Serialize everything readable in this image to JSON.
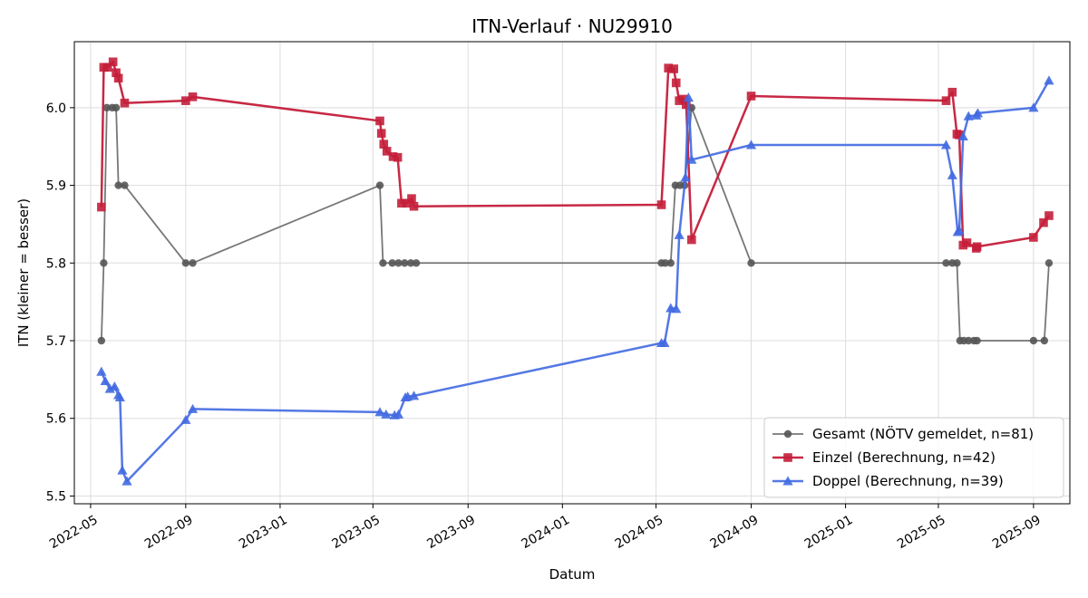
{
  "chart_data": {
    "type": "line",
    "title": "ITN-Verlauf · NU29910",
    "xlabel": "Datum",
    "ylabel": "ITN  (kleiner = besser)",
    "x_type": "date",
    "xlim": [
      "2022-04-10",
      "2025-10-18"
    ],
    "ylim": [
      5.49,
      6.085
    ],
    "x_ticks": [
      "2022-05",
      "2022-09",
      "2023-01",
      "2023-05",
      "2023-09",
      "2024-01",
      "2024-05",
      "2024-09",
      "2025-01",
      "2025-05",
      "2025-09"
    ],
    "y_ticks": [
      "5.5",
      "5.6",
      "5.7",
      "5.8",
      "5.9",
      "6.0"
    ],
    "grid": true,
    "legend_position": "bottom-right",
    "series": [
      {
        "name": "Gesamt (NÖTV gemeldet, n=81)",
        "color": "#555555",
        "marker": "circle",
        "points": [
          [
            "2022-05-15",
            5.7
          ],
          [
            "2022-05-18",
            5.8
          ],
          [
            "2022-05-22",
            6.0
          ],
          [
            "2022-05-29",
            6.0
          ],
          [
            "2022-06-03",
            6.0
          ],
          [
            "2022-06-06",
            5.9
          ],
          [
            "2022-06-14",
            5.9
          ],
          [
            "2022-09-01",
            5.8
          ],
          [
            "2022-09-10",
            5.8
          ],
          [
            "2023-05-10",
            5.9
          ],
          [
            "2023-05-14",
            5.8
          ],
          [
            "2023-05-26",
            5.8
          ],
          [
            "2023-06-03",
            5.8
          ],
          [
            "2023-06-11",
            5.8
          ],
          [
            "2023-06-19",
            5.8
          ],
          [
            "2023-06-26",
            5.8
          ],
          [
            "2024-05-08",
            5.8
          ],
          [
            "2024-05-13",
            5.8
          ],
          [
            "2024-05-20",
            5.8
          ],
          [
            "2024-05-26",
            5.9
          ],
          [
            "2024-06-01",
            5.9
          ],
          [
            "2024-06-07",
            5.9
          ],
          [
            "2024-06-16",
            6.0
          ],
          [
            "2024-09-01",
            5.8
          ],
          [
            "2025-05-11",
            5.8
          ],
          [
            "2025-05-19",
            5.8
          ],
          [
            "2025-05-25",
            5.8
          ],
          [
            "2025-05-29",
            5.7
          ],
          [
            "2025-06-03",
            5.7
          ],
          [
            "2025-06-09",
            5.7
          ],
          [
            "2025-06-16",
            5.7
          ],
          [
            "2025-06-20",
            5.7
          ],
          [
            "2025-09-01",
            5.7
          ],
          [
            "2025-09-15",
            5.7
          ],
          [
            "2025-09-21",
            5.8
          ]
        ]
      },
      {
        "name": "Einzel (Berechnung, n=42)",
        "color": "#c41e3a",
        "marker": "square",
        "points": [
          [
            "2022-05-15",
            5.872
          ],
          [
            "2022-05-18",
            6.052
          ],
          [
            "2022-05-23",
            6.052
          ],
          [
            "2022-05-30",
            6.059
          ],
          [
            "2022-06-03",
            6.045
          ],
          [
            "2022-06-06",
            6.038
          ],
          [
            "2022-06-14",
            6.006
          ],
          [
            "2022-09-01",
            6.009
          ],
          [
            "2022-09-10",
            6.014
          ],
          [
            "2023-05-10",
            5.983
          ],
          [
            "2023-05-12",
            5.967
          ],
          [
            "2023-05-15",
            5.953
          ],
          [
            "2023-05-19",
            5.944
          ],
          [
            "2023-05-27",
            5.937
          ],
          [
            "2023-06-02",
            5.936
          ],
          [
            "2023-06-07",
            5.877
          ],
          [
            "2023-06-14",
            5.877
          ],
          [
            "2023-06-20",
            5.883
          ],
          [
            "2023-06-23",
            5.873
          ],
          [
            "2024-05-08",
            5.875
          ],
          [
            "2024-05-17",
            6.051
          ],
          [
            "2024-05-24",
            6.05
          ],
          [
            "2024-05-27",
            6.032
          ],
          [
            "2024-05-31",
            6.009
          ],
          [
            "2024-06-06",
            6.011
          ],
          [
            "2024-06-09",
            6.004
          ],
          [
            "2024-06-16",
            5.83
          ],
          [
            "2024-09-01",
            6.015
          ],
          [
            "2025-05-11",
            6.009
          ],
          [
            "2025-05-19",
            6.02
          ],
          [
            "2025-05-25",
            5.966
          ],
          [
            "2025-05-28",
            5.965
          ],
          [
            "2025-06-02",
            5.823
          ],
          [
            "2025-06-07",
            5.826
          ],
          [
            "2025-06-19",
            5.819
          ],
          [
            "2025-06-20",
            5.821
          ],
          [
            "2025-09-01",
            5.833
          ],
          [
            "2025-09-14",
            5.852
          ],
          [
            "2025-09-21",
            5.861
          ]
        ]
      },
      {
        "name": "Doppel (Berechnung, n=39)",
        "color": "#4169e1",
        "marker": "triangle",
        "points": [
          [
            "2022-05-15",
            5.66
          ],
          [
            "2022-05-20",
            5.648
          ],
          [
            "2022-05-26",
            5.638
          ],
          [
            "2022-06-01",
            5.641
          ],
          [
            "2022-06-06",
            5.63
          ],
          [
            "2022-06-08",
            5.627
          ],
          [
            "2022-06-11",
            5.533
          ],
          [
            "2022-06-17",
            5.519
          ],
          [
            "2022-09-01",
            5.598
          ],
          [
            "2022-09-10",
            5.612
          ],
          [
            "2023-05-10",
            5.608
          ],
          [
            "2023-05-18",
            5.605
          ],
          [
            "2023-05-29",
            5.604
          ],
          [
            "2023-06-03",
            5.605
          ],
          [
            "2023-06-12",
            5.627
          ],
          [
            "2023-06-15",
            5.628
          ],
          [
            "2023-06-23",
            5.629
          ],
          [
            "2024-05-08",
            5.697
          ],
          [
            "2024-05-12",
            5.697
          ],
          [
            "2024-05-20",
            5.742
          ],
          [
            "2024-05-27",
            5.741
          ],
          [
            "2024-05-31",
            5.836
          ],
          [
            "2024-06-08",
            5.91
          ],
          [
            "2024-06-12",
            6.013
          ],
          [
            "2024-06-16",
            5.933
          ],
          [
            "2024-09-01",
            5.952
          ],
          [
            "2025-05-11",
            5.952
          ],
          [
            "2025-05-19",
            5.913
          ],
          [
            "2025-05-26",
            5.84
          ],
          [
            "2025-05-28",
            5.842
          ],
          [
            "2025-06-02",
            5.963
          ],
          [
            "2025-06-09",
            5.989
          ],
          [
            "2025-06-19",
            5.99
          ],
          [
            "2025-06-21",
            5.993
          ],
          [
            "2025-09-01",
            6.0
          ],
          [
            "2025-09-21",
            6.035
          ]
        ]
      }
    ]
  }
}
